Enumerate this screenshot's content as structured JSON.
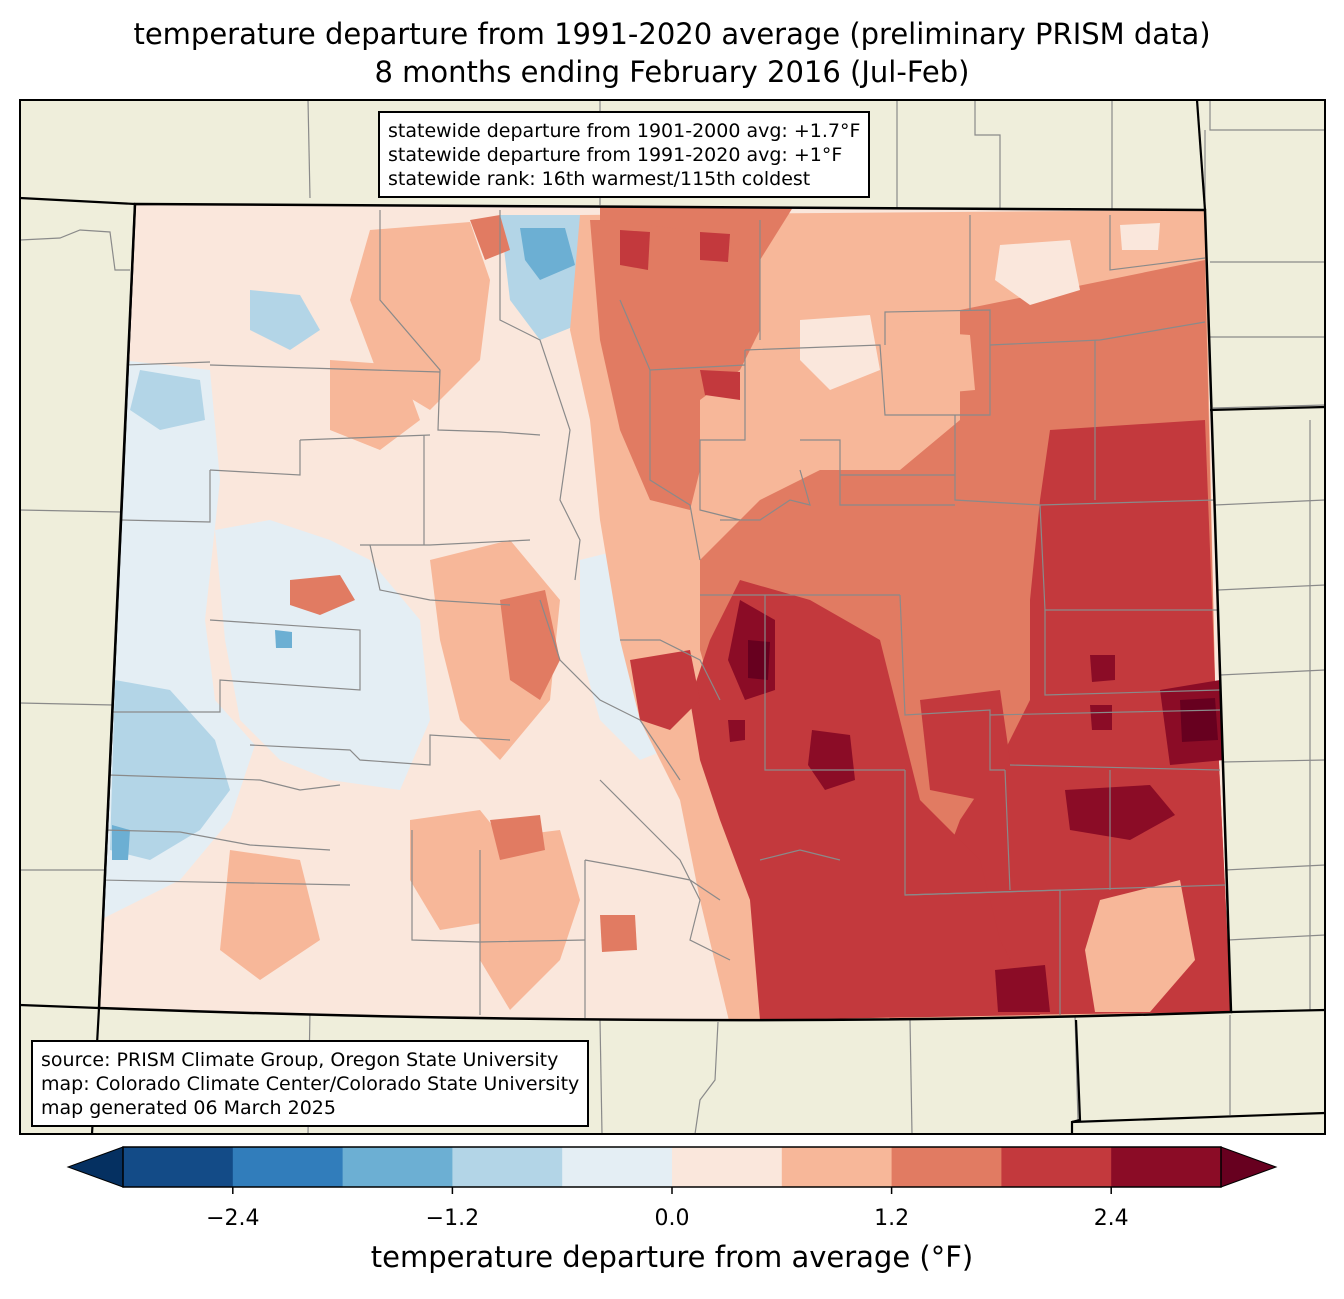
{
  "title": {
    "line1": "temperature departure from 1991-2020 average (preliminary PRISM data)",
    "line2": "8 months ending February 2016 (Jul-Feb)"
  },
  "stats": {
    "line1": "statewide departure from 1901-2000 avg: +1.7°F",
    "line2": "statewide departure from 1991-2020 avg: +1°F",
    "line3": "statewide rank: 16th warmest/115th coldest"
  },
  "credits": {
    "line1": "source: PRISM Climate Group, Oregon State University",
    "line2": "map: Colorado Climate Center/Colorado State University",
    "line3": "map generated 06 March 2025"
  },
  "colorbar": {
    "label": "temperature departure from average (°F)",
    "ticks": [
      "−2.4",
      "−1.2",
      "0.0",
      "1.2",
      "2.4"
    ],
    "tick_values": [
      -2.4,
      -1.2,
      0.0,
      1.2,
      2.4
    ],
    "bounds": [
      -3.0,
      -2.4,
      -1.8,
      -1.2,
      -0.6,
      0.0,
      0.6,
      1.2,
      1.8,
      2.4,
      3.0
    ],
    "colors": [
      "#134b87",
      "#317dbb",
      "#6cafd3",
      "#b3d5e7",
      "#e4eef4",
      "#fae7dc",
      "#f7b799",
      "#e17b62",
      "#c3393d",
      "#8b0c26"
    ],
    "under_color": "#053061",
    "over_color": "#67001f"
  },
  "map_colors": {
    "land_background": "#efeedb",
    "county_lines": "#8a8a8a",
    "state_lines": "#000000"
  }
}
